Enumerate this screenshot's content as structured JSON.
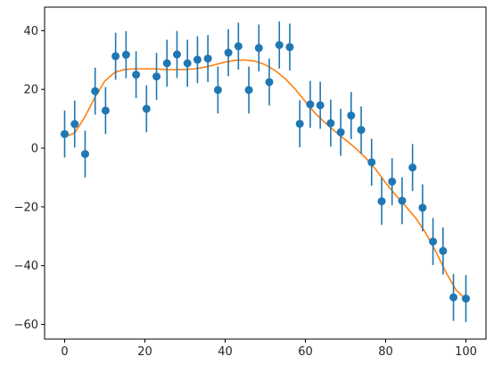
{
  "chart_data": {
    "type": "scatter",
    "xlim": [
      -5,
      105
    ],
    "ylim": [
      -65,
      48
    ],
    "x_ticks": [
      0,
      20,
      40,
      60,
      80,
      100
    ],
    "y_ticks": [
      40,
      20,
      0,
      -20,
      -40,
      -60
    ],
    "grid": false,
    "title": "",
    "xlabel": "",
    "ylabel": "",
    "series": [
      {
        "type": "errorbar",
        "color": "#1f77b4",
        "marker": "circle",
        "x": [
          0,
          2.5,
          5.1,
          7.6,
          10.2,
          12.7,
          15.3,
          17.8,
          20.4,
          22.9,
          25.5,
          28.0,
          30.6,
          33.1,
          35.7,
          38.2,
          40.8,
          43.3,
          45.9,
          48.4,
          51.0,
          53.5,
          56.1,
          58.6,
          61.2,
          63.7,
          66.3,
          68.8,
          71.4,
          73.9,
          76.5,
          79.0,
          81.6,
          84.1,
          86.7,
          89.2,
          91.8,
          94.3,
          96.9,
          100
        ],
        "y": [
          4.8,
          8.2,
          -2.0,
          19.4,
          12.8,
          31.3,
          31.8,
          25.0,
          13.4,
          24.4,
          28.9,
          31.9,
          28.9,
          30.1,
          30.5,
          19.8,
          32.5,
          34.7,
          19.8,
          34.1,
          22.5,
          35.1,
          34.4,
          8.3,
          14.9,
          14.6,
          8.5,
          5.4,
          11.1,
          6.2,
          -4.8,
          -18.1,
          -11.4,
          -17.9,
          -6.6,
          -20.3,
          -31.8,
          -35.0,
          -50.8,
          -51.2
        ],
        "yerr": 8
      },
      {
        "type": "line",
        "color": "#ff7f0e",
        "x": [
          0,
          2.5,
          5,
          7.5,
          10,
          12.5,
          15,
          17.5,
          20,
          22.5,
          25,
          27.5,
          30,
          32.5,
          35,
          37.5,
          40,
          42.5,
          45,
          47.5,
          50,
          52.5,
          55,
          57.5,
          60,
          62.5,
          65,
          67.5,
          70,
          72.5,
          75,
          77.5,
          80,
          82.5,
          85,
          87.5,
          90,
          92.5,
          95,
          97.5,
          100
        ],
        "y": [
          3.8,
          5.2,
          10.5,
          17.2,
          22.8,
          25.8,
          26.8,
          27.0,
          27.0,
          27.0,
          26.8,
          26.7,
          26.8,
          27.0,
          27.6,
          28.4,
          29.3,
          29.9,
          30.0,
          29.6,
          28.4,
          26.4,
          23.6,
          20.0,
          15.8,
          11.8,
          8.5,
          5.6,
          2.8,
          0.0,
          -3.3,
          -7.2,
          -11.8,
          -16.0,
          -19.8,
          -23.8,
          -28.9,
          -35.2,
          -42.2,
          -48.2,
          -51.5
        ]
      }
    ]
  }
}
